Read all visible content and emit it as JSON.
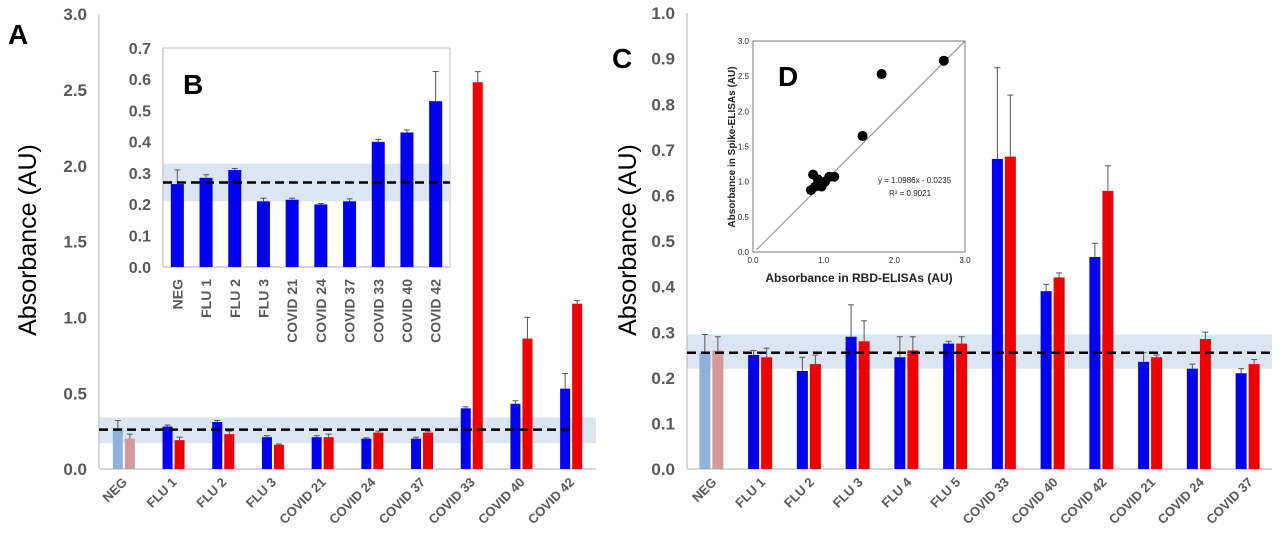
{
  "colors": {
    "blue": "#0000ee",
    "red": "#ee0000",
    "neg_blue": "#8fb2dc",
    "neg_red": "#d49a9a",
    "band": "#dce6f2",
    "axis": "#bfbfbf"
  },
  "chart_data": [
    {
      "panel": "A",
      "type": "bar",
      "ylabel": "Absorbance (AU)",
      "ylim": [
        0,
        3.0
      ],
      "yticks": [
        "0.0",
        "0.5",
        "1.0",
        "1.5",
        "2.0",
        "2.5",
        "3.0"
      ],
      "categories": [
        "NEG",
        "FLU 1",
        "FLU 2",
        "FLU 3",
        "COVID 21",
        "COVID 24",
        "COVID 37",
        "COVID 33",
        "COVID 40",
        "COVID 42"
      ],
      "series": [
        {
          "values": [
            0.27,
            0.28,
            0.31,
            0.21,
            0.21,
            0.2,
            0.2,
            0.4,
            0.43,
            0.53
          ],
          "errors": [
            0.05,
            0.01,
            0.01,
            0.01,
            0.01,
            0.005,
            0.01,
            0.01,
            0.02,
            0.1
          ]
        },
        {
          "values": [
            0.2,
            0.19,
            0.23,
            0.16,
            0.21,
            0.24,
            0.24,
            2.55,
            0.86,
            1.09
          ],
          "errors": [
            0.03,
            0.02,
            0.02,
            0.005,
            0.02,
            0.01,
            0.01,
            0.07,
            0.14,
            0.02
          ]
        }
      ],
      "cutoff": 0.26,
      "band": [
        0.17,
        0.34
      ]
    },
    {
      "panel": "B",
      "type": "bar",
      "ylim": [
        0,
        0.7
      ],
      "yticks": [
        "0.0",
        "0.1",
        "0.2",
        "0.3",
        "0.4",
        "0.5",
        "0.6",
        "0.7"
      ],
      "categories": [
        "NEG",
        "FLU 1",
        "FLU 2",
        "FLU 3",
        "COVID 21",
        "COVID 24",
        "COVID 37",
        "COVID 33",
        "COVID 40",
        "COVID 42"
      ],
      "series": [
        {
          "values": [
            0.265,
            0.285,
            0.31,
            0.21,
            0.215,
            0.2,
            0.21,
            0.4,
            0.43,
            0.53
          ],
          "errors": [
            0.045,
            0.01,
            0.005,
            0.01,
            0.005,
            0.003,
            0.008,
            0.008,
            0.008,
            0.095
          ]
        }
      ],
      "cutoff": 0.27,
      "band": [
        0.21,
        0.33
      ]
    },
    {
      "panel": "C",
      "type": "bar",
      "ylabel": "Absorbance (AU)",
      "ylim": [
        0,
        1.0
      ],
      "yticks": [
        "0.0",
        "0.1",
        "0.2",
        "0.3",
        "0.4",
        "0.5",
        "0.6",
        "0.7",
        "0.8",
        "0.9",
        "1.0"
      ],
      "categories": [
        "NEG",
        "FLU 1",
        "FLU 2",
        "FLU 3",
        "FLU 4",
        "FLU 5",
        "COVID 33",
        "COVID 40",
        "COVID 42",
        "COVID 21",
        "COVID 24",
        "COVID 37"
      ],
      "series": [
        {
          "values": [
            0.255,
            0.25,
            0.215,
            0.29,
            0.245,
            0.275,
            0.68,
            0.39,
            0.465,
            0.235,
            0.22,
            0.21
          ],
          "errors": [
            0.04,
            0.01,
            0.03,
            0.07,
            0.045,
            0.005,
            0.2,
            0.015,
            0.03,
            0.02,
            0.01,
            0.01
          ]
        },
        {
          "values": [
            0.26,
            0.245,
            0.23,
            0.28,
            0.26,
            0.275,
            0.685,
            0.42,
            0.61,
            0.245,
            0.285,
            0.23
          ],
          "errors": [
            0.03,
            0.02,
            0.02,
            0.045,
            0.03,
            0.015,
            0.135,
            0.01,
            0.055,
            0.005,
            0.015,
            0.01
          ]
        }
      ],
      "cutoff": 0.255,
      "band": [
        0.22,
        0.295
      ]
    },
    {
      "panel": "D",
      "type": "scatter",
      "xlabel": "Absorbance in RBD-ELISAs (AU)",
      "ylabel": "Absorbance in Spike-ELISAs (AU)",
      "xlim": [
        0,
        3.0
      ],
      "ylim": [
        0,
        3.0
      ],
      "xticks": [
        "0.0",
        "1.0",
        "2.0",
        "3.0"
      ],
      "yticks": [
        "0.0",
        "0.5",
        "1.0",
        "1.5",
        "2.0",
        "2.5",
        "3.0"
      ],
      "points": [
        [
          0.82,
          0.88
        ],
        [
          0.88,
          0.93
        ],
        [
          0.92,
          1.03
        ],
        [
          0.85,
          1.1
        ],
        [
          0.97,
          0.93
        ],
        [
          1.02,
          1.0
        ],
        [
          1.08,
          1.07
        ],
        [
          1.15,
          1.07
        ],
        [
          1.55,
          1.65
        ],
        [
          1.82,
          2.53
        ],
        [
          2.7,
          2.72
        ]
      ],
      "fit": {
        "slope": 1.0986,
        "intercept": -0.0235
      },
      "equation": "y = 1.0986x - 0.0235",
      "r2": "R² = 0.9021"
    }
  ]
}
